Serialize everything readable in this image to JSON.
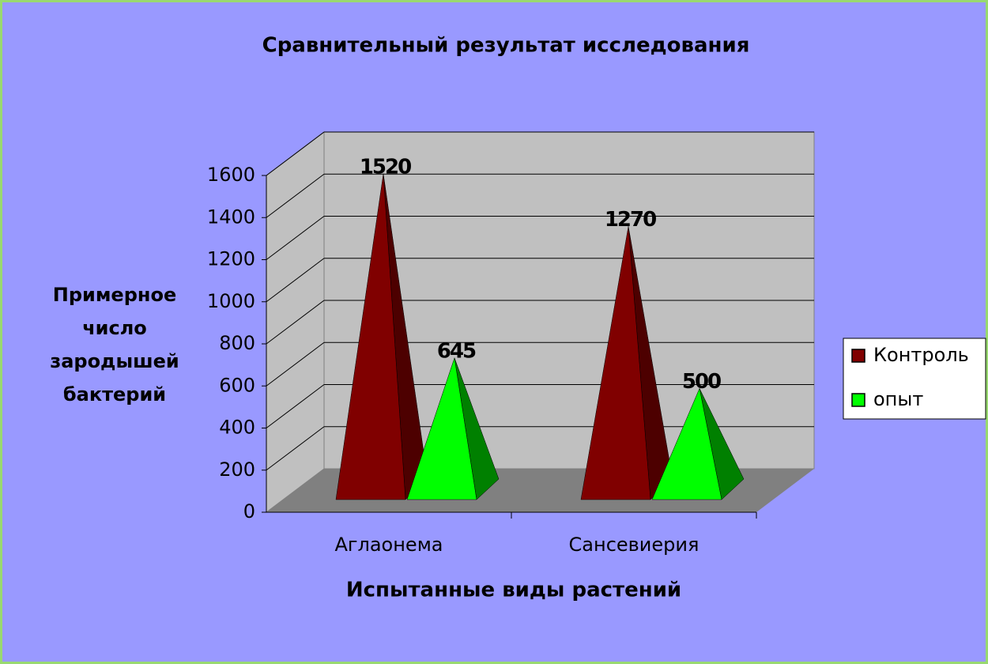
{
  "chart_data": {
    "type": "pyramid3d",
    "title": "Сравнительный результат исследования",
    "x_label": "Испытанные виды растений",
    "y_label": "Примерное\nчисло\nзародышей\nбактерий",
    "categories": [
      "Аглаонема",
      "Сансевиерия"
    ],
    "series": [
      {
        "name": "Контроль",
        "color": "#800000",
        "shade": "#4d0000",
        "values": [
          1520,
          1270
        ]
      },
      {
        "name": "опыт",
        "color": "#00ff00",
        "shade": "#008000",
        "values": [
          645,
          500
        ]
      }
    ],
    "ylim": [
      0,
      1600
    ],
    "yticks": [
      0,
      200,
      400,
      600,
      800,
      1000,
      1200,
      1400,
      1600
    ],
    "grid": true,
    "legend": "right"
  }
}
